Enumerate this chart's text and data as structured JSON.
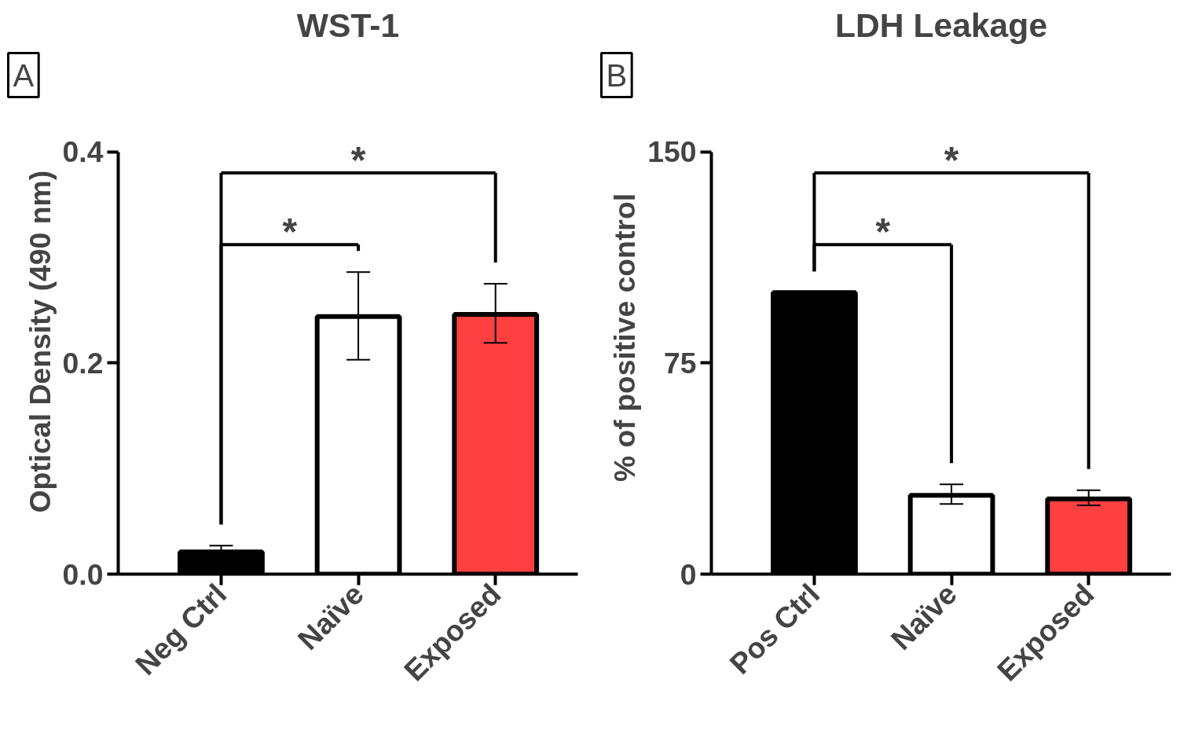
{
  "chart_data": [
    {
      "type": "bar",
      "title": "WST-1",
      "ylabel": "Optical  Density (490 nm)",
      "categories": [
        "Neg Ctrl",
        "Naïve",
        "Exposed"
      ],
      "values": [
        0.021,
        0.244,
        0.246
      ],
      "colors": [
        "#000000",
        "#ffffff",
        "#ff4040"
      ],
      "errors": [
        [
          0.021,
          0.027
        ],
        [
          0.203,
          0.286
        ],
        [
          0.219,
          0.275
        ]
      ],
      "ylim": [
        0,
        0.4
      ],
      "yticks": [
        {
          "value": 0,
          "label": "0.0"
        },
        {
          "value": 0.2,
          "label": "0.2"
        },
        {
          "value": 0.4,
          "label": "0.4"
        }
      ],
      "annotations": [
        "A",
        "*",
        "*"
      ],
      "grid": false
    },
    {
      "type": "bar",
      "title": "LDH Leakage",
      "ylabel": "% of positive control",
      "categories": [
        "Pos Ctrl",
        "Naïve",
        "Exposed"
      ],
      "values": [
        100,
        28,
        26.7
      ],
      "colors": [
        "#000000",
        "#ffffff",
        "#ff4040"
      ],
      "errors": [
        null,
        [
          24.9,
          31.9
        ],
        [
          24.4,
          29.8
        ]
      ],
      "ylim": [
        0,
        150
      ],
      "yticks": [
        0,
        75,
        150
      ],
      "annotations": [
        "B",
        "*",
        "*"
      ],
      "grid": false
    }
  ]
}
